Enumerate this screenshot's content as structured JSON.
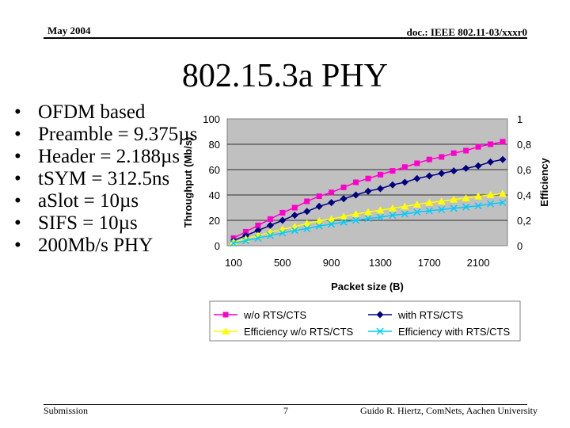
{
  "header": {
    "date": "May 2004",
    "doc": "doc.: IEEE 802.11-03/xxxr0"
  },
  "title": "802.15.3a PHY",
  "bullets": [
    "OFDM based",
    "Preamble = 9.375µs",
    "Header = 2.188µs",
    "tSYM = 312.5ns",
    "aSlot = 10µs",
    "SIFS = 10µs",
    "200Mb/s PHY"
  ],
  "footer": {
    "left": "Submission",
    "page": "7",
    "author": "Guido R. Hiertz, ComNets, Aachen University"
  },
  "chart_data": {
    "type": "line",
    "xlabel": "Packet size (B)",
    "ylabel": "Throughput (Mb/s)",
    "y2label": "Efficiency",
    "x": [
      100,
      200,
      300,
      400,
      500,
      600,
      700,
      800,
      900,
      1000,
      1100,
      1200,
      1300,
      1400,
      1500,
      1600,
      1700,
      1800,
      1900,
      2000,
      2100,
      2200,
      2300
    ],
    "xticks": [
      "100",
      "500",
      "900",
      "1300",
      "1700",
      "2100"
    ],
    "yticks": [
      "0",
      "20",
      "40",
      "60",
      "80",
      "100"
    ],
    "y2ticks": [
      "0",
      "0,2",
      "0,4",
      "0,6",
      "0,8",
      "1"
    ],
    "ylim": [
      0,
      100
    ],
    "y2lim": [
      0,
      1
    ],
    "series": [
      {
        "name": "w/o RTS/CTS",
        "axis": "left",
        "color": "#ff00cc",
        "marker": "square",
        "values": [
          6,
          11,
          16,
          21,
          26,
          30,
          35,
          39,
          42,
          46,
          50,
          53,
          56,
          59,
          62,
          65,
          68,
          70,
          73,
          75,
          78,
          80,
          82
        ]
      },
      {
        "name": "with RTS/CTS",
        "axis": "left",
        "color": "#000080",
        "marker": "diamond",
        "values": [
          4,
          8,
          12,
          16,
          20,
          24,
          27,
          31,
          34,
          37,
          40,
          43,
          45,
          48,
          50,
          53,
          55,
          57,
          59,
          61,
          63,
          66,
          68
        ]
      },
      {
        "name": "Efficiency w/o RTS/CTS",
        "axis": "right",
        "color": "#ffff00",
        "marker": "triangle",
        "values": [
          0.03,
          0.055,
          0.08,
          0.105,
          0.13,
          0.15,
          0.175,
          0.195,
          0.21,
          0.23,
          0.25,
          0.265,
          0.28,
          0.295,
          0.31,
          0.325,
          0.34,
          0.35,
          0.365,
          0.375,
          0.39,
          0.4,
          0.41
        ]
      },
      {
        "name": "Efficiency with RTS/CTS",
        "axis": "right",
        "color": "#00ccff",
        "marker": "x",
        "values": [
          0.02,
          0.04,
          0.06,
          0.08,
          0.1,
          0.12,
          0.135,
          0.155,
          0.17,
          0.185,
          0.2,
          0.215,
          0.225,
          0.24,
          0.25,
          0.265,
          0.275,
          0.285,
          0.295,
          0.305,
          0.315,
          0.33,
          0.34
        ]
      }
    ]
  }
}
